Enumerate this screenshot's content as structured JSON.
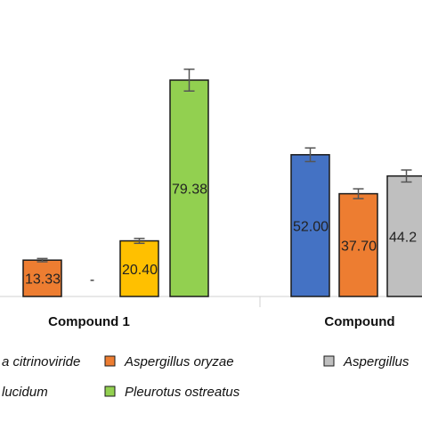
{
  "chart_data": {
    "type": "bar",
    "title": "",
    "xlabel": "",
    "ylabel": "",
    "ylim": [
      0,
      100
    ],
    "grid": false,
    "legend_placement": "bottom",
    "categories": [
      "Compound 1",
      "Compound"
    ],
    "series": [
      {
        "name": "a citrinoviride",
        "color": "#4472C4",
        "values": [
          null,
          52.0
        ],
        "labels": [
          "",
          "52.00"
        ],
        "errors": [
          null,
          2.5
        ]
      },
      {
        "name": "Aspergillus oryzae",
        "color": "#ED7D31",
        "values": [
          13.33,
          37.7
        ],
        "labels": [
          "13.33",
          "37.70"
        ],
        "errors": [
          0.6,
          1.8
        ]
      },
      {
        "name": "Aspergillus",
        "color": "#BFBFBF",
        "values": [
          0,
          44.2
        ],
        "labels": [
          "-",
          "44.2"
        ],
        "errors": [
          null,
          2.2
        ]
      },
      {
        "name": "lucidum",
        "color": "#FFC000",
        "values": [
          20.4,
          null
        ],
        "labels": [
          "20.40",
          ""
        ],
        "errors": [
          0.9,
          null
        ]
      },
      {
        "name": "Pleurotus ostreatus",
        "color": "#92D050",
        "values": [
          79.38,
          null
        ],
        "labels": [
          "79.38",
          ""
        ],
        "errors": [
          4.0,
          null
        ]
      }
    ]
  }
}
